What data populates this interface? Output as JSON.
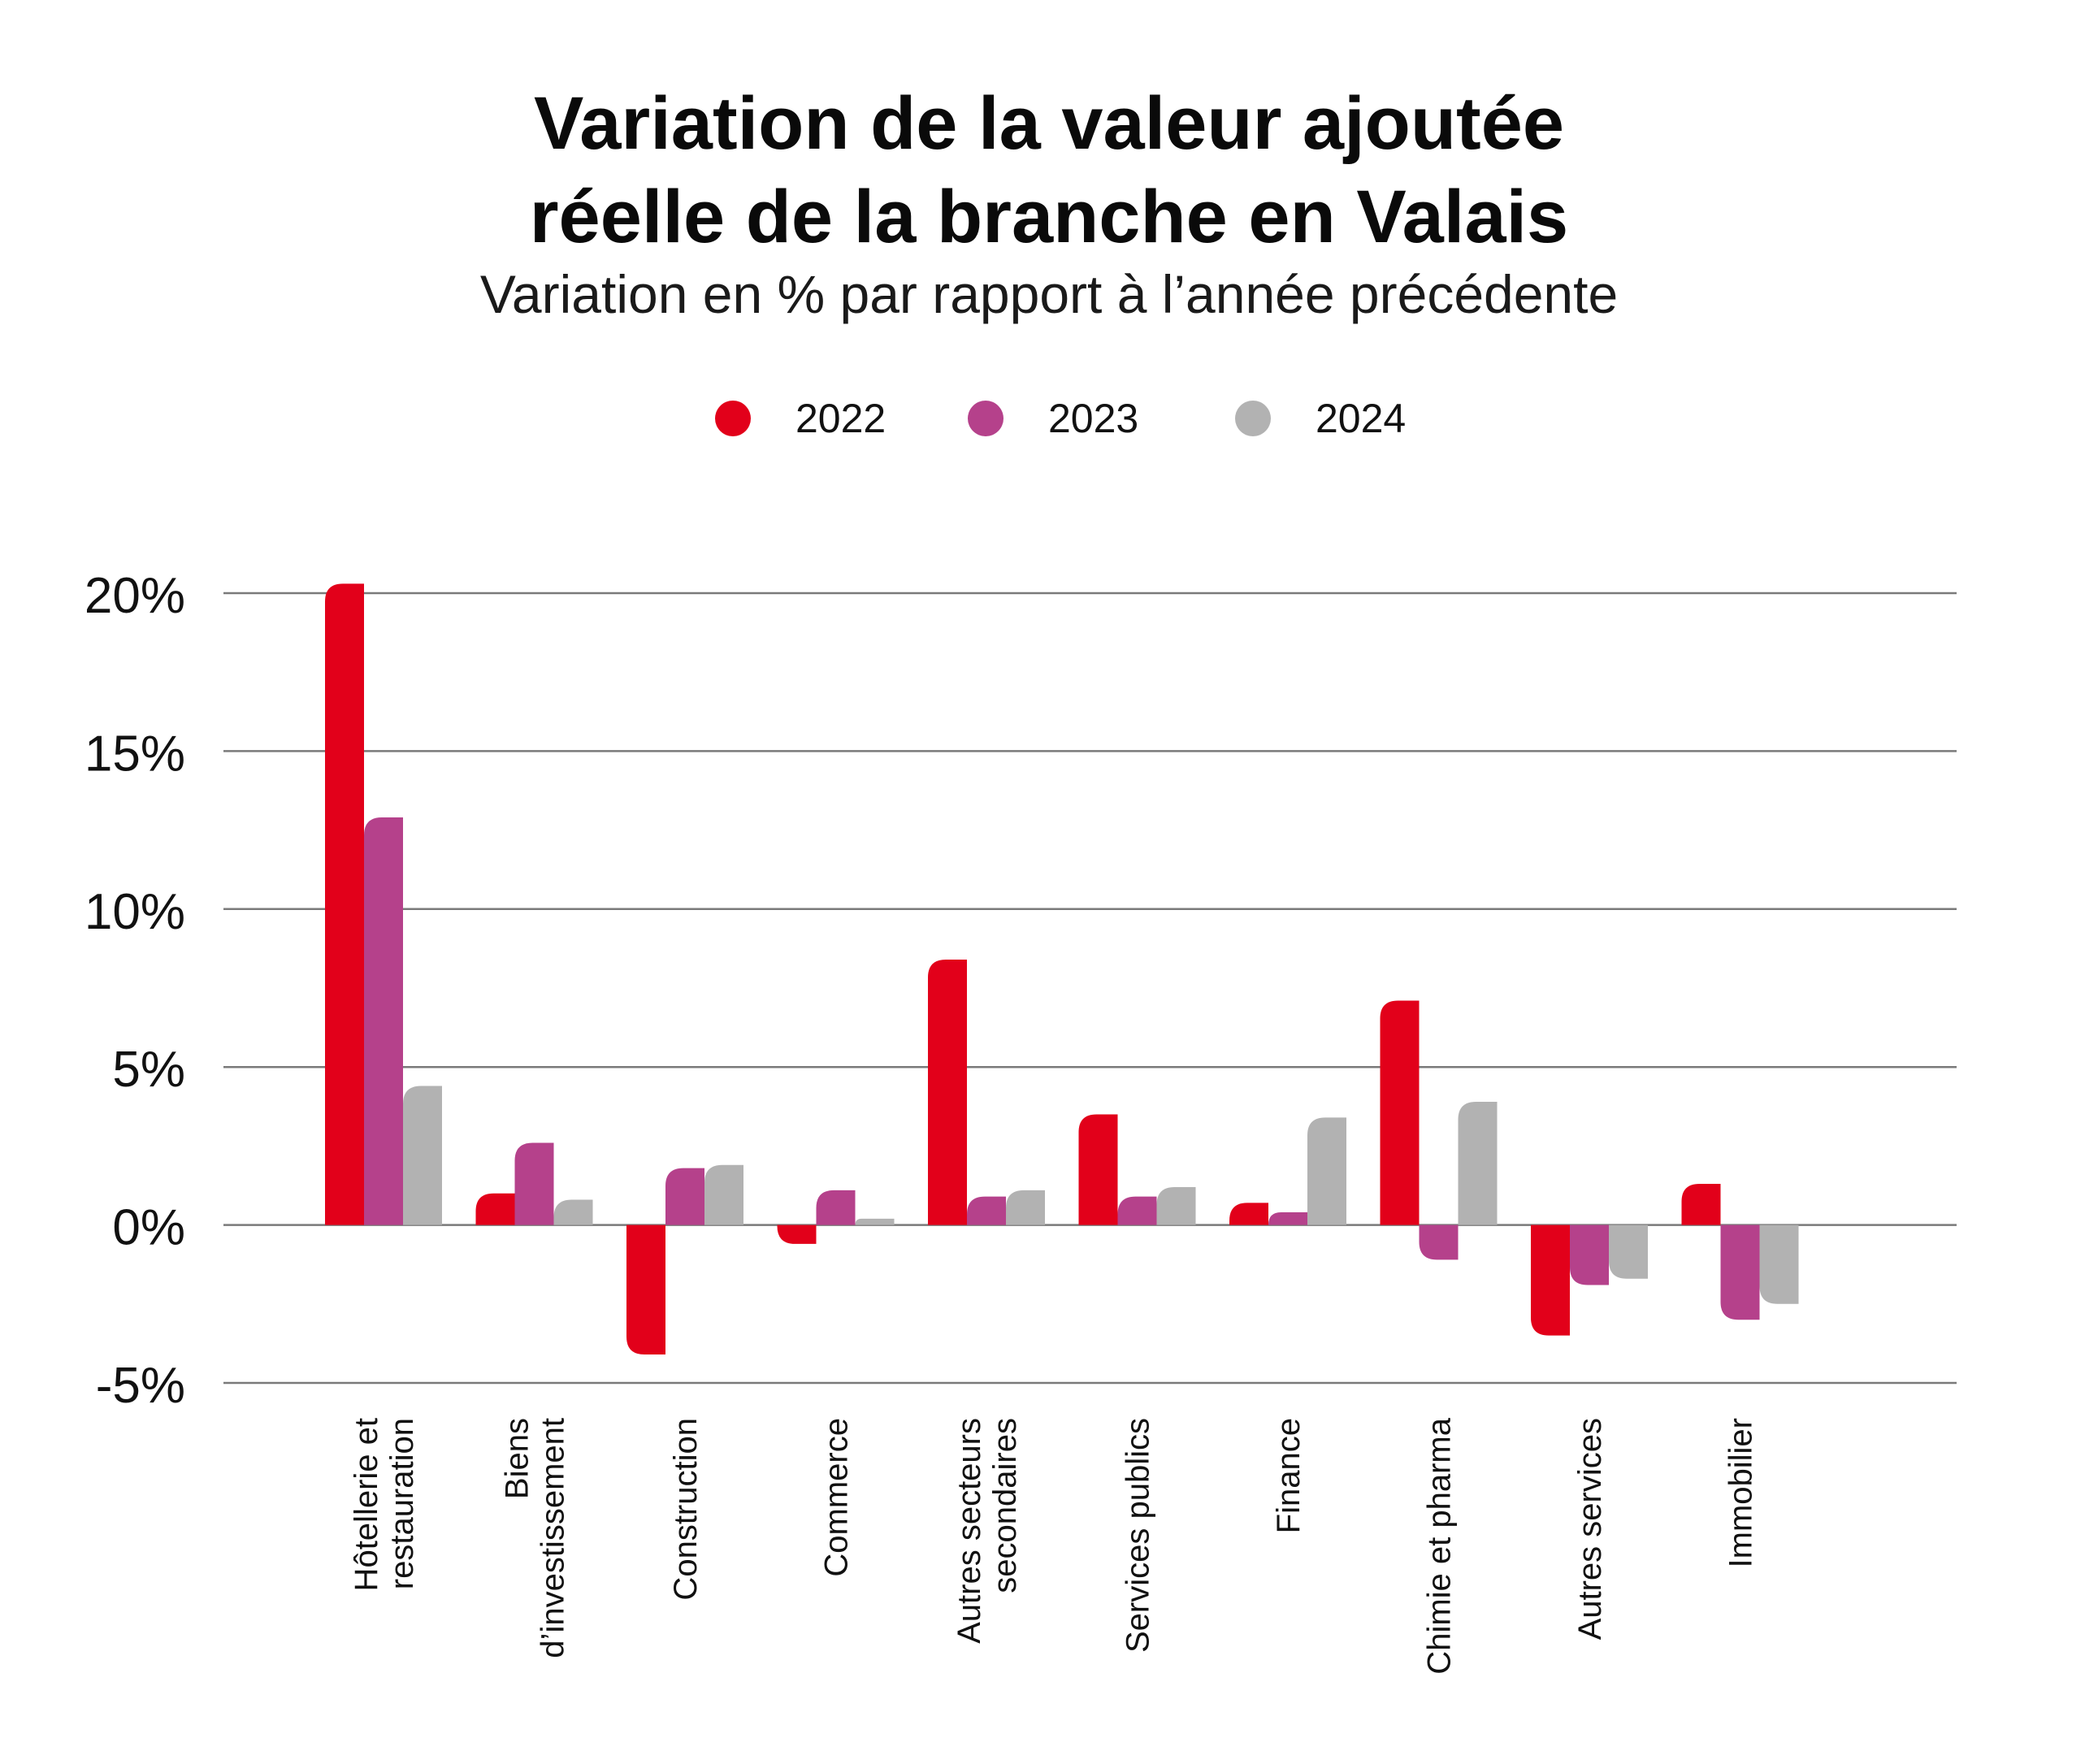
{
  "title_line1": "Variation de la valeur ajoutée",
  "title_line2": "réelle de la branche en Valais",
  "subtitle": "Variation en % par rapport à l’année précédente",
  "colors": {
    "2022": "#e2001a",
    "2023": "#b5418b",
    "2024": "#b2b2b2",
    "grid": "#7a7a7a"
  },
  "chart_data": {
    "type": "bar",
    "title": "Variation de la valeur ajoutée réelle de la branche en Valais",
    "subtitle": "Variation en % par rapport à l’année précédente",
    "categories": [
      [
        "Hôtellerie et",
        "restauration"
      ],
      [
        "Biens",
        "d’investissement"
      ],
      [
        "Construction"
      ],
      [
        "Commerce"
      ],
      [
        "Autres secteurs",
        "secondaires"
      ],
      [
        "Services publics"
      ],
      [
        "Finance"
      ],
      [
        "Chimie et pharma"
      ],
      [
        "Autres services"
      ],
      [
        "Immobilier"
      ]
    ],
    "series": [
      {
        "name": "2022",
        "color": "#e2001a",
        "values": [
          20.3,
          1.0,
          -4.1,
          -0.6,
          8.4,
          3.5,
          0.7,
          7.1,
          -3.5,
          1.3
        ]
      },
      {
        "name": "2023",
        "color": "#b5418b",
        "values": [
          12.9,
          2.6,
          1.8,
          1.1,
          0.9,
          0.9,
          0.4,
          -1.1,
          -1.9,
          -3.0
        ]
      },
      {
        "name": "2024",
        "color": "#b2b2b2",
        "values": [
          4.4,
          0.8,
          1.9,
          0.2,
          1.1,
          1.2,
          3.4,
          3.9,
          -1.7,
          -2.5
        ]
      }
    ],
    "ylim": [
      -5,
      20
    ],
    "yticks": [
      20,
      15,
      10,
      5,
      0,
      -5
    ],
    "ytick_labels": [
      "20%",
      "15%",
      "10%",
      "5%",
      "0%",
      "-5%"
    ],
    "legend": {
      "position": "top-center",
      "entries": [
        "2022",
        "2023",
        "2024"
      ]
    },
    "grid": true
  }
}
